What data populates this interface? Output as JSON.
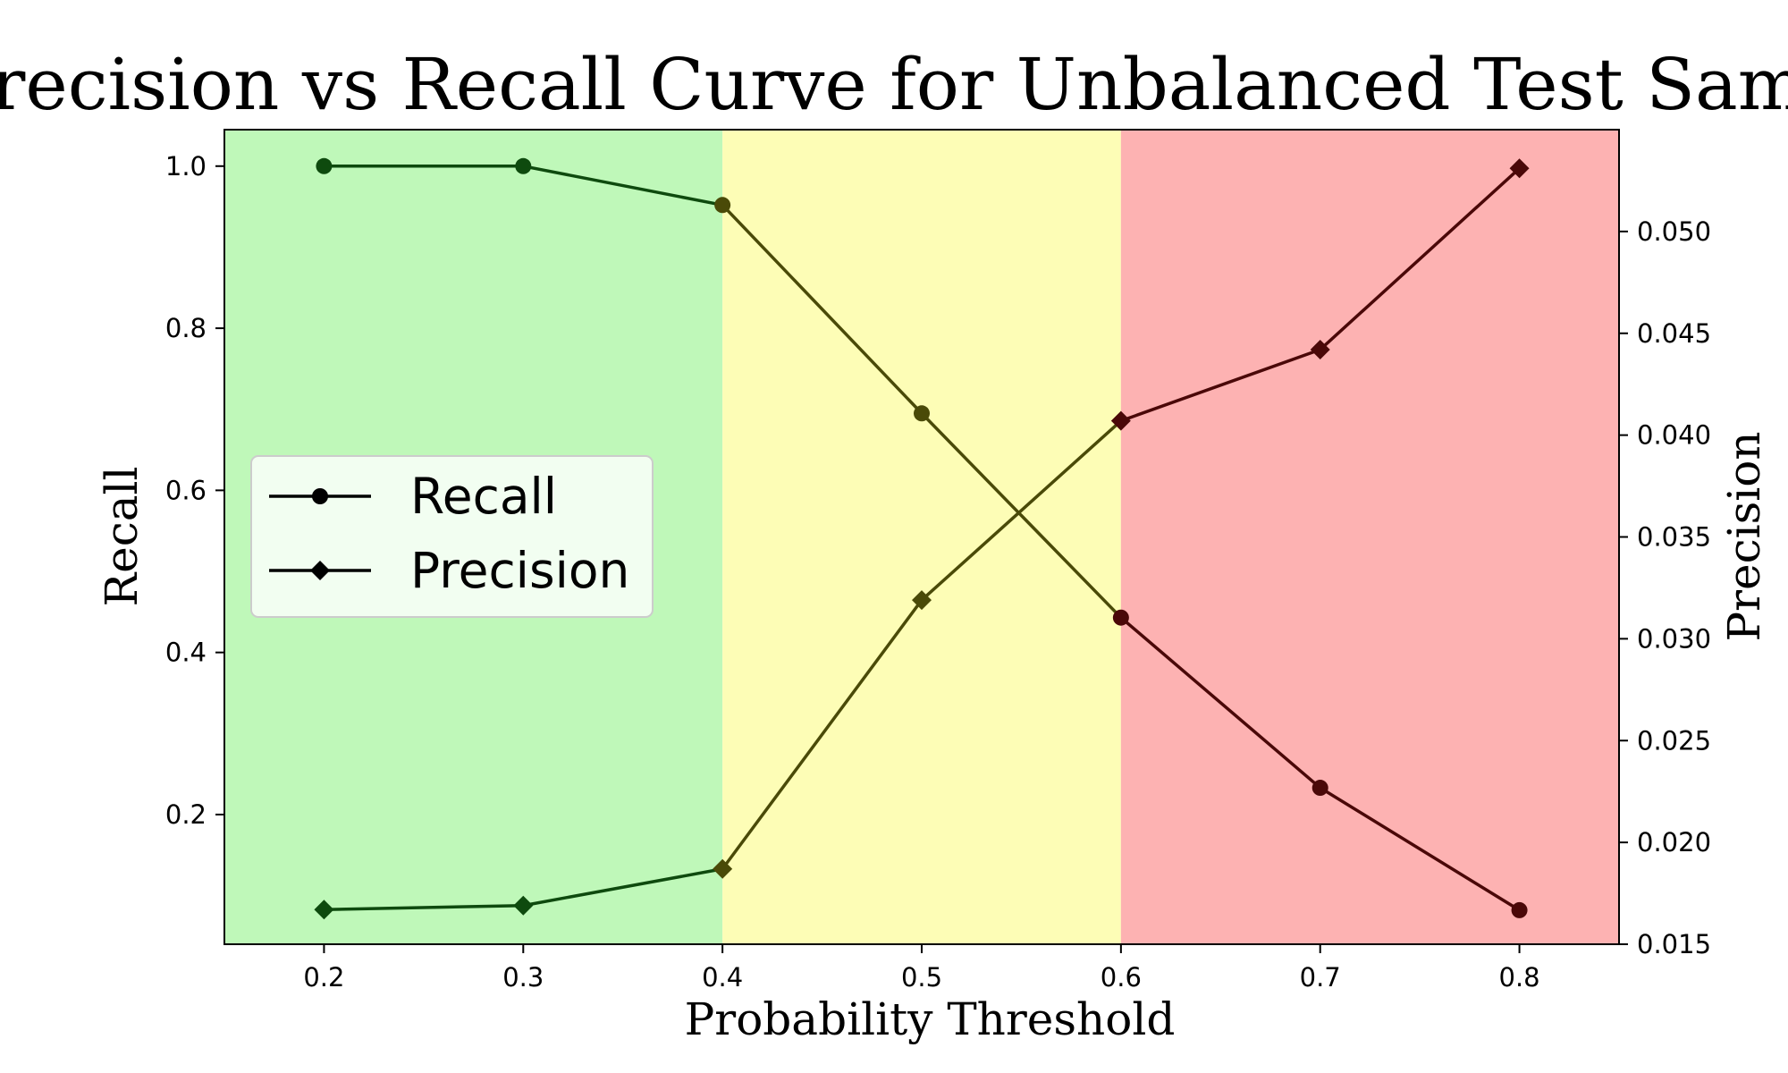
{
  "chart_data": {
    "type": "line",
    "title": "Precision vs Recall Curve for Unbalanced Test Sample",
    "xlabel": "Probability Threshold",
    "ylabel_left": "Recall",
    "ylabel_right": "Precision",
    "x": [
      0.2,
      0.3,
      0.4,
      0.5,
      0.6,
      0.7,
      0.8
    ],
    "xlim": [
      0.15,
      0.85
    ],
    "ylim_left": [
      0.04,
      1.045
    ],
    "ylim_right": [
      0.015,
      0.055
    ],
    "x_ticks": [
      "0.2",
      "0.3",
      "0.4",
      "0.5",
      "0.6",
      "0.7",
      "0.8"
    ],
    "y_left_ticks": [
      "0.2",
      "0.4",
      "0.6",
      "0.8",
      "1.0"
    ],
    "y_right_ticks": [
      "0.015",
      "0.020",
      "0.025",
      "0.030",
      "0.035",
      "0.040",
      "0.045",
      "0.050"
    ],
    "series": [
      {
        "name": "Recall",
        "axis": "left",
        "marker": "circle",
        "values": [
          1.0,
          1.0,
          0.952,
          0.695,
          0.443,
          0.233,
          0.082
        ]
      },
      {
        "name": "Precision",
        "axis": "right",
        "marker": "diamond",
        "values": [
          0.0167,
          0.0169,
          0.0187,
          0.0319,
          0.0407,
          0.0442,
          0.0531
        ]
      }
    ],
    "regions": [
      {
        "from": 0.15,
        "to": 0.4,
        "color": "#bff8b9"
      },
      {
        "from": 0.4,
        "to": 0.6,
        "color": "#fdfdb6"
      },
      {
        "from": 0.6,
        "to": 0.85,
        "color": "#fdb2b2"
      }
    ],
    "segment_line_colors": [
      "#0e4a0e",
      "#4a4a08",
      "#4a0808"
    ],
    "marker_colors": [
      "#0e4a0e",
      "#4a4a08",
      "#4a0808"
    ],
    "legend": {
      "placement": "center-left",
      "entries": [
        "Recall",
        "Precision"
      ]
    },
    "grid": false
  }
}
